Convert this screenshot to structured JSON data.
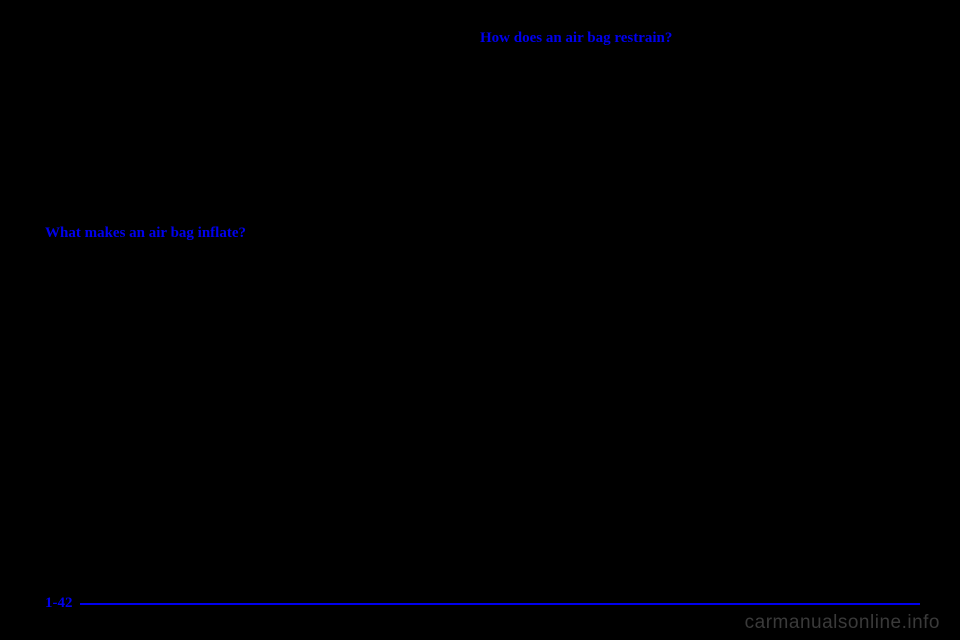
{
  "page": {
    "number": "1-42",
    "watermark": "carmanualsonline.info",
    "background_color": "#000000",
    "heading_color": "#0000ee",
    "divider_color": "#0000ee",
    "watermark_color": "#3a3a3a"
  },
  "left_column": {
    "heading": "What makes an air bag inflate?"
  },
  "right_column": {
    "heading": "How does an air bag restrain?"
  }
}
